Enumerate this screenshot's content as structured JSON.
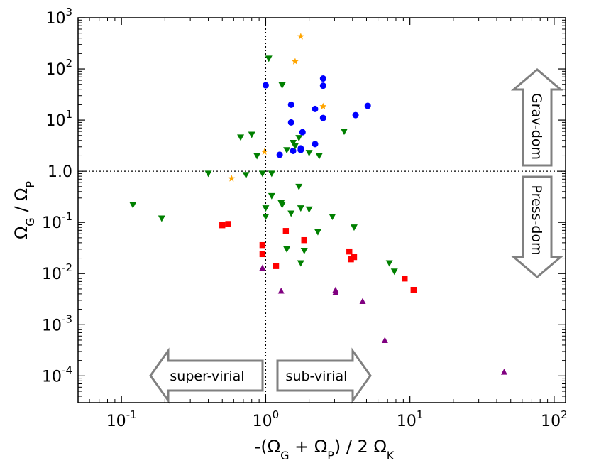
{
  "chart_data": {
    "type": "scatter",
    "xscale": "log",
    "yscale": "log",
    "xlim": [
      0.05,
      120
    ],
    "ylim": [
      3e-05,
      1000
    ],
    "xticks": [
      0.1,
      1,
      10,
      100
    ],
    "xtick_labels": [
      {
        "base": "10",
        "exp": "-1"
      },
      {
        "base": "10",
        "exp": "0"
      },
      {
        "base": "10",
        "exp": "1"
      },
      {
        "base": "10",
        "exp": "2"
      }
    ],
    "yticks": [
      0.0001,
      0.001,
      0.01,
      0.1,
      1,
      10,
      100,
      1000
    ],
    "ytick_labels": [
      {
        "base": "10",
        "exp": "-4"
      },
      {
        "base": "10",
        "exp": "-3"
      },
      {
        "base": "10",
        "exp": "-2"
      },
      {
        "base": "10",
        "exp": "-1"
      },
      {
        "base": "1.0",
        "exp": ""
      },
      {
        "base": "10",
        "exp": "1"
      },
      {
        "base": "10",
        "exp": "2"
      },
      {
        "base": "10",
        "exp": "3"
      }
    ],
    "xlabel": {
      "pre": "-(Ω",
      "s1": "G",
      "mid": " + Ω",
      "s2": "P",
      "post": ") / 2 Ω",
      "s3": "K"
    },
    "ylabel": {
      "p1": "Ω",
      "s1": "G",
      "p2": "  / Ω",
      "s2": "P"
    },
    "reference_lines": {
      "x": 1,
      "y": 1,
      "style": "dotted"
    },
    "annotations": [
      {
        "text": "super-virial",
        "direction": "left"
      },
      {
        "text": "sub-virial",
        "direction": "right"
      },
      {
        "text": "Grav-dom",
        "direction": "up"
      },
      {
        "text": "Press-dom",
        "direction": "down"
      }
    ],
    "series": [
      {
        "name": "orange-stars",
        "marker": "star",
        "color": "#FFA500",
        "points": [
          [
            1.75,
            430
          ],
          [
            1.6,
            140
          ],
          [
            2.5,
            18.5
          ],
          [
            0.98,
            2.4
          ],
          [
            0.58,
            0.72
          ]
        ]
      },
      {
        "name": "blue-circles",
        "marker": "circle",
        "color": "#0000FF",
        "points": [
          [
            1.0,
            48
          ],
          [
            2.5,
            65
          ],
          [
            2.5,
            47
          ],
          [
            1.5,
            20
          ],
          [
            5.1,
            19
          ],
          [
            2.2,
            16.5
          ],
          [
            4.2,
            12.5
          ],
          [
            2.5,
            11
          ],
          [
            1.5,
            9
          ],
          [
            1.8,
            5.8
          ],
          [
            2.2,
            3.4
          ],
          [
            1.75,
            2.8
          ],
          [
            1.55,
            2.5
          ],
          [
            1.75,
            2.6
          ],
          [
            1.25,
            2.1
          ]
        ]
      },
      {
        "name": "green-triangles-down",
        "marker": "triangle-down",
        "color": "#008000",
        "points": [
          [
            1.05,
            160
          ],
          [
            1.3,
            48
          ],
          [
            3.5,
            6.0
          ],
          [
            0.67,
            4.6
          ],
          [
            0.8,
            5.2
          ],
          [
            1.7,
            4.5
          ],
          [
            1.55,
            3.6
          ],
          [
            1.6,
            3.1
          ],
          [
            0.87,
            2.0
          ],
          [
            1.4,
            2.6
          ],
          [
            2.0,
            2.3
          ],
          [
            2.35,
            2.0
          ],
          [
            0.4,
            0.9
          ],
          [
            0.73,
            0.85
          ],
          [
            0.95,
            0.9
          ],
          [
            1.1,
            0.9
          ],
          [
            1.7,
            0.5
          ],
          [
            0.12,
            0.22
          ],
          [
            0.19,
            0.12
          ],
          [
            1.1,
            0.33
          ],
          [
            1.28,
            0.24
          ],
          [
            1.3,
            0.22
          ],
          [
            1.0,
            0.19
          ],
          [
            1.75,
            0.19
          ],
          [
            2.0,
            0.18
          ],
          [
            1.5,
            0.15
          ],
          [
            1.0,
            0.13
          ],
          [
            2.9,
            0.13
          ],
          [
            4.1,
            0.08
          ],
          [
            2.3,
            0.065
          ],
          [
            1.4,
            0.03
          ],
          [
            1.85,
            0.028
          ],
          [
            1.75,
            0.016
          ],
          [
            7.2,
            0.016
          ],
          [
            7.8,
            0.011
          ]
        ]
      },
      {
        "name": "red-squares",
        "marker": "square",
        "color": "#FF0000",
        "points": [
          [
            0.5,
            0.088
          ],
          [
            0.55,
            0.093
          ],
          [
            1.38,
            0.068
          ],
          [
            1.85,
            0.045
          ],
          [
            0.95,
            0.036
          ],
          [
            0.95,
            0.024
          ],
          [
            3.8,
            0.027
          ],
          [
            4.1,
            0.021
          ],
          [
            3.9,
            0.019
          ],
          [
            1.18,
            0.014
          ],
          [
            9.2,
            0.008
          ],
          [
            10.6,
            0.0048
          ]
        ]
      },
      {
        "name": "purple-triangles-up",
        "marker": "triangle-up",
        "color": "#800080",
        "points": [
          [
            0.95,
            0.013
          ],
          [
            1.28,
            0.0046
          ],
          [
            3.05,
            0.0048
          ],
          [
            3.05,
            0.0043
          ],
          [
            4.7,
            0.0029
          ],
          [
            6.7,
            0.0005
          ],
          [
            45,
            0.00012
          ]
        ]
      }
    ]
  }
}
